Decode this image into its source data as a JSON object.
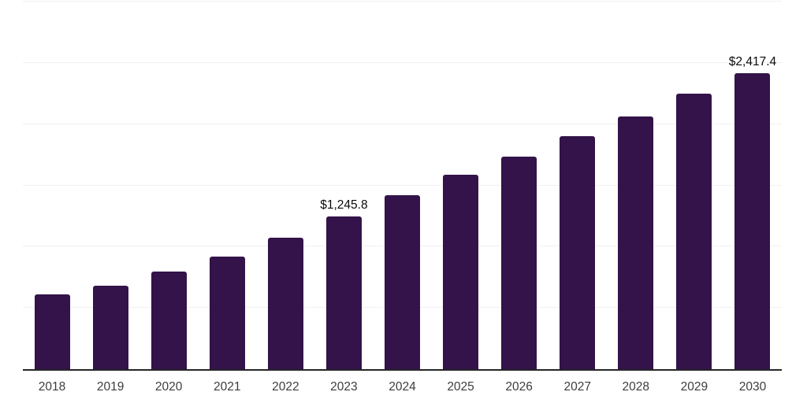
{
  "chart_data": {
    "type": "bar",
    "title": "",
    "xlabel": "",
    "ylabel": "",
    "categories": [
      "2018",
      "2019",
      "2020",
      "2021",
      "2022",
      "2023",
      "2024",
      "2025",
      "2026",
      "2027",
      "2028",
      "2029",
      "2030"
    ],
    "values": [
      610,
      680,
      795,
      920,
      1070,
      1245.8,
      1420,
      1590,
      1735,
      1900,
      2065,
      2250,
      2417.4
    ],
    "data_labels": [
      null,
      null,
      null,
      null,
      null,
      "$1,245.8",
      null,
      null,
      null,
      null,
      null,
      null,
      "$2,417.4"
    ],
    "ylim": [
      0,
      3000
    ],
    "gridline_values": [
      500,
      1000,
      1500,
      2000,
      2500,
      3000
    ],
    "grid": true,
    "legend_position": "none",
    "y_tick_labels_shown": false
  },
  "colors": {
    "bar": "#331349",
    "axis": "#262626",
    "gridline": "#f1f1f1",
    "tick_label": "#3d3d3d",
    "data_label": "#0a0a0a",
    "background": "#ffffff"
  }
}
